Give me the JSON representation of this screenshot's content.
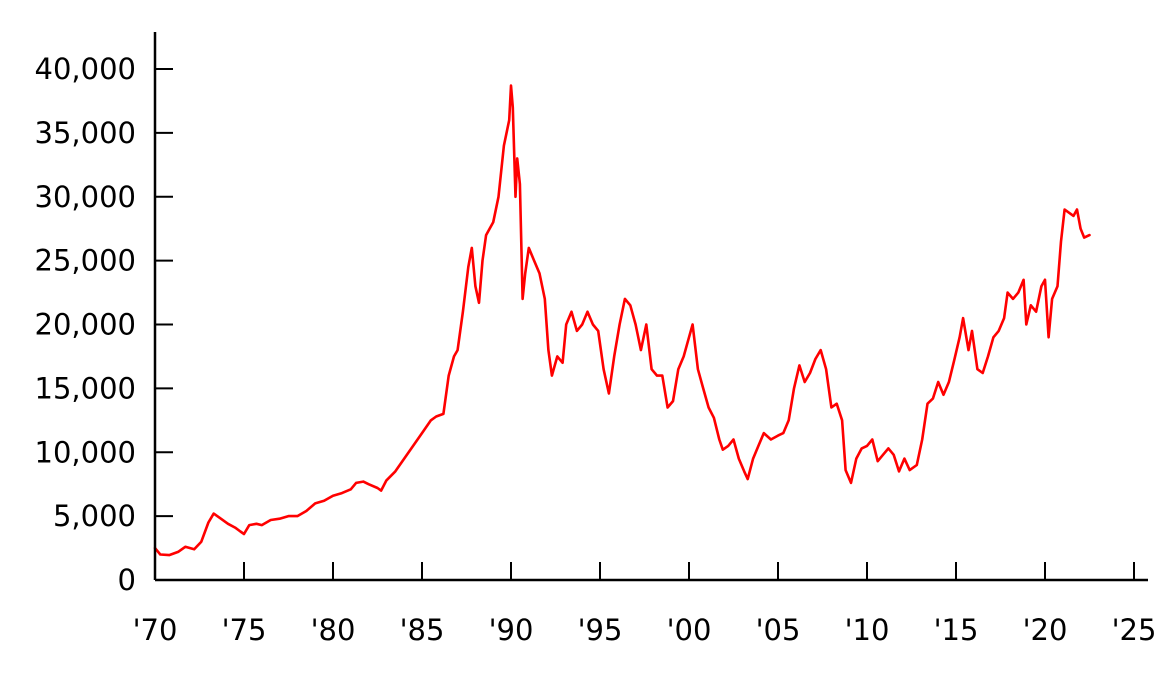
{
  "chart_data": {
    "type": "line",
    "title": "",
    "xlabel": "",
    "ylabel": "",
    "xlim": [
      1970,
      2025
    ],
    "ylim": [
      0,
      43000
    ],
    "grid": false,
    "legend": "none",
    "x_ticks": [
      1970,
      1975,
      1980,
      1985,
      1990,
      1995,
      2000,
      2005,
      2010,
      2015,
      2020,
      2025
    ],
    "x_tick_labels": [
      "'70",
      "'75",
      "'80",
      "'85",
      "'90",
      "'95",
      "'00",
      "'05",
      "'10",
      "'15",
      "'20",
      "'25"
    ],
    "y_ticks": [
      0,
      5000,
      10000,
      15000,
      20000,
      25000,
      30000,
      35000,
      40000
    ],
    "y_tick_labels": [
      "0",
      "5,000",
      "10,000",
      "15,000",
      "20,000",
      "25,000",
      "30,000",
      "35,000",
      "40,000"
    ],
    "series": [
      {
        "color": "#ff0000",
        "points": [
          [
            1970.0,
            2500
          ],
          [
            1970.3,
            2000
          ],
          [
            1970.8,
            1950
          ],
          [
            1971.3,
            2200
          ],
          [
            1971.7,
            2600
          ],
          [
            1972.2,
            2400
          ],
          [
            1972.6,
            3000
          ],
          [
            1973.0,
            4500
          ],
          [
            1973.3,
            5200
          ],
          [
            1973.7,
            4800
          ],
          [
            1974.1,
            4400
          ],
          [
            1974.5,
            4100
          ],
          [
            1974.8,
            3800
          ],
          [
            1975.0,
            3600
          ],
          [
            1975.3,
            4300
          ],
          [
            1975.7,
            4400
          ],
          [
            1976.0,
            4300
          ],
          [
            1976.5,
            4700
          ],
          [
            1977.0,
            4800
          ],
          [
            1977.5,
            5000
          ],
          [
            1978.0,
            5000
          ],
          [
            1978.5,
            5400
          ],
          [
            1979.0,
            6000
          ],
          [
            1979.5,
            6200
          ],
          [
            1980.0,
            6600
          ],
          [
            1980.5,
            6800
          ],
          [
            1981.0,
            7100
          ],
          [
            1981.3,
            7600
          ],
          [
            1981.7,
            7700
          ],
          [
            1982.0,
            7500
          ],
          [
            1982.5,
            7200
          ],
          [
            1982.7,
            7000
          ],
          [
            1983.0,
            7800
          ],
          [
            1983.5,
            8500
          ],
          [
            1984.0,
            9500
          ],
          [
            1984.5,
            10500
          ],
          [
            1985.0,
            11500
          ],
          [
            1985.5,
            12500
          ],
          [
            1985.8,
            12800
          ],
          [
            1986.2,
            13000
          ],
          [
            1986.5,
            16000
          ],
          [
            1986.8,
            17500
          ],
          [
            1987.0,
            18000
          ],
          [
            1987.3,
            21000
          ],
          [
            1987.6,
            24500
          ],
          [
            1987.8,
            26000
          ],
          [
            1988.0,
            23000
          ],
          [
            1988.2,
            21700
          ],
          [
            1988.4,
            25000
          ],
          [
            1988.6,
            27000
          ],
          [
            1988.8,
            27500
          ],
          [
            1989.0,
            28000
          ],
          [
            1989.3,
            30000
          ],
          [
            1989.6,
            34000
          ],
          [
            1989.9,
            36000
          ],
          [
            1990.0,
            38700
          ],
          [
            1990.1,
            37000
          ],
          [
            1990.25,
            30000
          ],
          [
            1990.35,
            33000
          ],
          [
            1990.5,
            31000
          ],
          [
            1990.65,
            22000
          ],
          [
            1990.8,
            24000
          ],
          [
            1991.0,
            26000
          ],
          [
            1991.3,
            25000
          ],
          [
            1991.6,
            24000
          ],
          [
            1991.9,
            22000
          ],
          [
            1992.1,
            18000
          ],
          [
            1992.3,
            16000
          ],
          [
            1992.6,
            17500
          ],
          [
            1992.9,
            17000
          ],
          [
            1993.1,
            20000
          ],
          [
            1993.4,
            21000
          ],
          [
            1993.7,
            19500
          ],
          [
            1994.0,
            20000
          ],
          [
            1994.3,
            21000
          ],
          [
            1994.6,
            20000
          ],
          [
            1994.9,
            19500
          ],
          [
            1995.2,
            16500
          ],
          [
            1995.5,
            14600
          ],
          [
            1995.8,
            17500
          ],
          [
            1996.1,
            20000
          ],
          [
            1996.4,
            22000
          ],
          [
            1996.7,
            21500
          ],
          [
            1997.0,
            20000
          ],
          [
            1997.3,
            18000
          ],
          [
            1997.6,
            20000
          ],
          [
            1997.9,
            16500
          ],
          [
            1998.2,
            16000
          ],
          [
            1998.5,
            16000
          ],
          [
            1998.8,
            13500
          ],
          [
            1999.1,
            14000
          ],
          [
            1999.4,
            16500
          ],
          [
            1999.7,
            17500
          ],
          [
            2000.0,
            19000
          ],
          [
            2000.2,
            20000
          ],
          [
            2000.5,
            16500
          ],
          [
            2000.8,
            15000
          ],
          [
            2001.1,
            13500
          ],
          [
            2001.4,
            12700
          ],
          [
            2001.7,
            11000
          ],
          [
            2001.9,
            10200
          ],
          [
            2002.2,
            10500
          ],
          [
            2002.5,
            11000
          ],
          [
            2002.8,
            9500
          ],
          [
            2003.1,
            8500
          ],
          [
            2003.3,
            7900
          ],
          [
            2003.6,
            9500
          ],
          [
            2003.9,
            10500
          ],
          [
            2004.2,
            11500
          ],
          [
            2004.6,
            11000
          ],
          [
            2005.0,
            11300
          ],
          [
            2005.3,
            11500
          ],
          [
            2005.6,
            12500
          ],
          [
            2005.9,
            15000
          ],
          [
            2006.2,
            16800
          ],
          [
            2006.5,
            15500
          ],
          [
            2006.8,
            16200
          ],
          [
            2007.1,
            17300
          ],
          [
            2007.4,
            18000
          ],
          [
            2007.7,
            16500
          ],
          [
            2008.0,
            13500
          ],
          [
            2008.3,
            13800
          ],
          [
            2008.6,
            12500
          ],
          [
            2008.8,
            8600
          ],
          [
            2009.1,
            7600
          ],
          [
            2009.4,
            9500
          ],
          [
            2009.7,
            10300
          ],
          [
            2010.0,
            10500
          ],
          [
            2010.3,
            11000
          ],
          [
            2010.6,
            9300
          ],
          [
            2010.9,
            9800
          ],
          [
            2011.2,
            10300
          ],
          [
            2011.5,
            9800
          ],
          [
            2011.8,
            8500
          ],
          [
            2012.1,
            9500
          ],
          [
            2012.4,
            8600
          ],
          [
            2012.8,
            9000
          ],
          [
            2013.1,
            11000
          ],
          [
            2013.4,
            13800
          ],
          [
            2013.7,
            14200
          ],
          [
            2014.0,
            15500
          ],
          [
            2014.3,
            14500
          ],
          [
            2014.6,
            15500
          ],
          [
            2014.9,
            17200
          ],
          [
            2015.2,
            19000
          ],
          [
            2015.4,
            20500
          ],
          [
            2015.7,
            18000
          ],
          [
            2015.9,
            19500
          ],
          [
            2016.2,
            16500
          ],
          [
            2016.5,
            16200
          ],
          [
            2016.8,
            17500
          ],
          [
            2017.1,
            19000
          ],
          [
            2017.4,
            19500
          ],
          [
            2017.7,
            20500
          ],
          [
            2017.9,
            22500
          ],
          [
            2018.2,
            22000
          ],
          [
            2018.5,
            22500
          ],
          [
            2018.8,
            23500
          ],
          [
            2018.95,
            20000
          ],
          [
            2019.2,
            21500
          ],
          [
            2019.5,
            21000
          ],
          [
            2019.8,
            23000
          ],
          [
            2020.0,
            23500
          ],
          [
            2020.2,
            19000
          ],
          [
            2020.4,
            22000
          ],
          [
            2020.7,
            23000
          ],
          [
            2020.9,
            26500
          ],
          [
            2021.1,
            29000
          ],
          [
            2021.3,
            28800
          ],
          [
            2021.6,
            28500
          ],
          [
            2021.8,
            29000
          ],
          [
            2022.0,
            27500
          ],
          [
            2022.2,
            26800
          ],
          [
            2022.5,
            27000
          ]
        ]
      }
    ]
  }
}
